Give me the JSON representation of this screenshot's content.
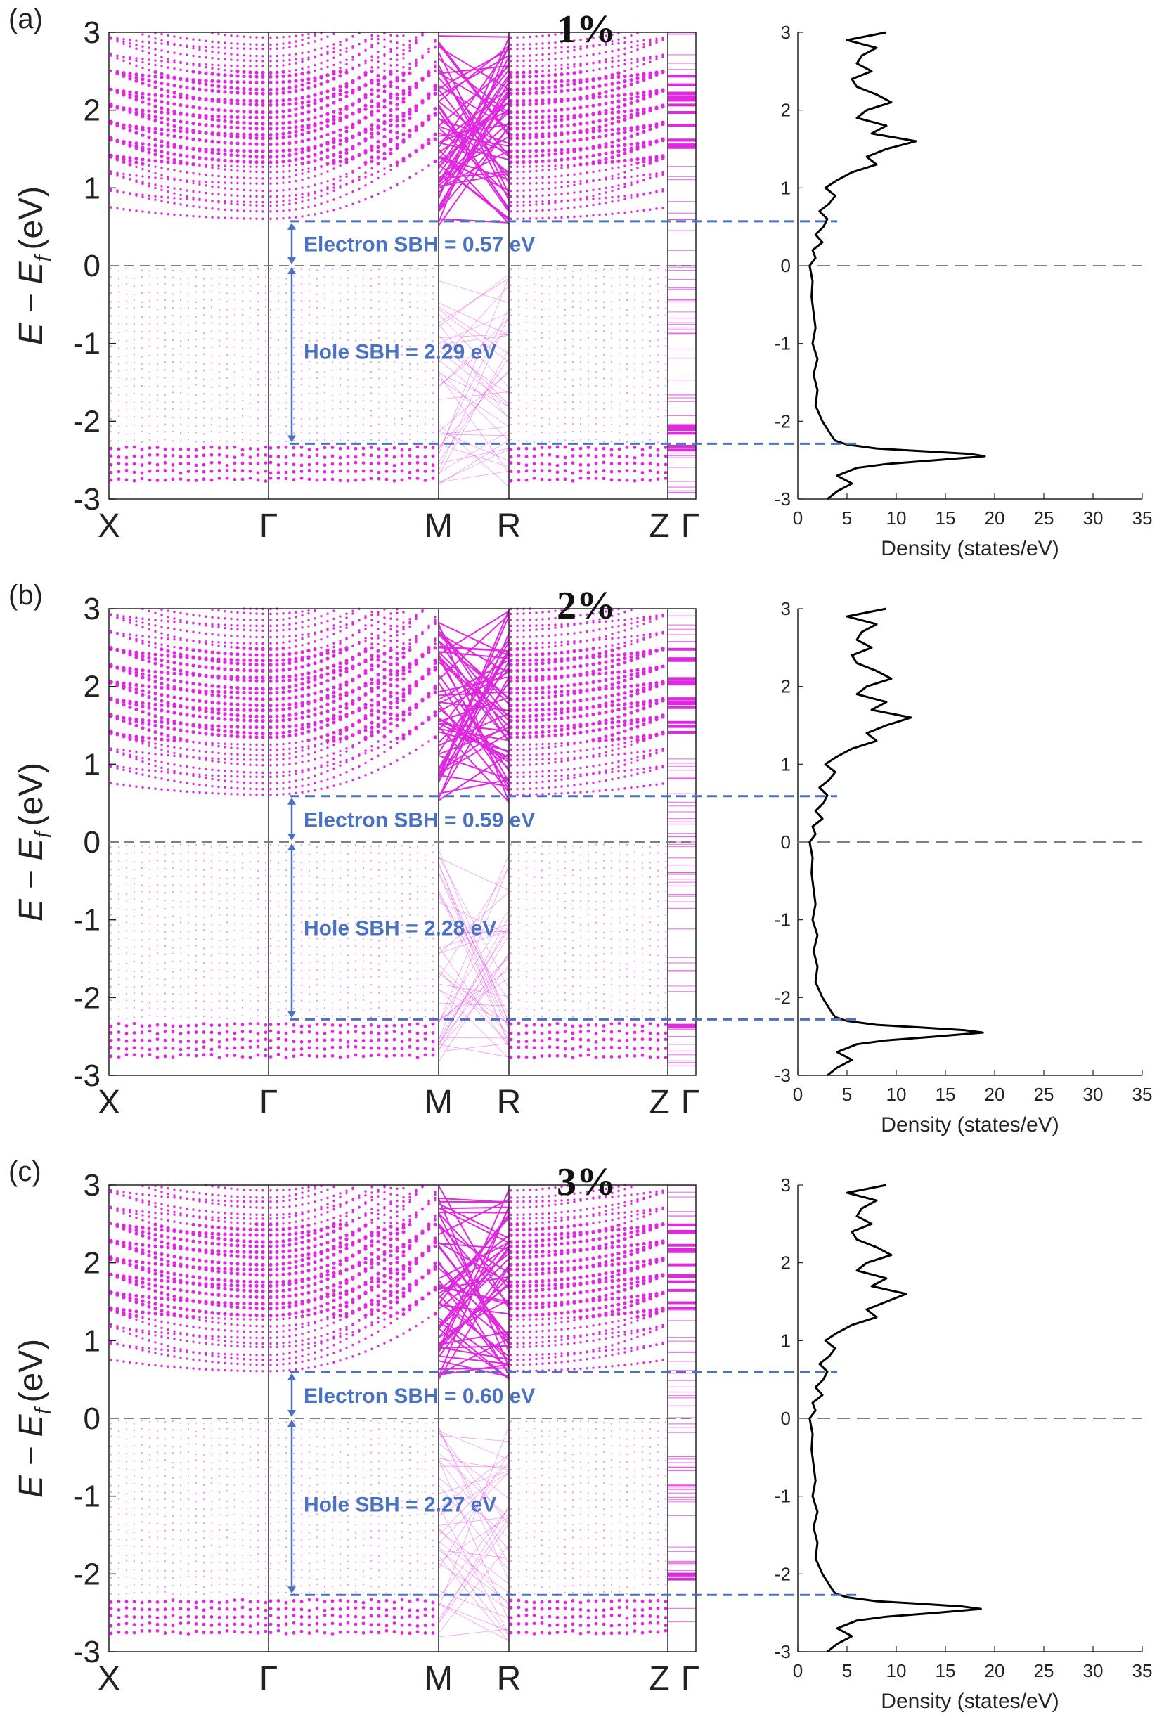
{
  "chart_data": [
    {
      "type": "line",
      "panel_label": "(a)",
      "strain_label": "1%",
      "band_structure": {
        "kpoints": [
          "X",
          "Γ",
          "M",
          "R",
          "Z",
          "Γ"
        ],
        "ylabel_main": "E − E",
        "ylabel_sub": "f",
        "ylabel_unit": "(eV)",
        "ylim": [
          -3,
          3
        ],
        "yticks": [
          "3",
          "2",
          "1",
          "0",
          "-1",
          "-2",
          "-3"
        ],
        "cbm": 0.57,
        "vbm": -2.29,
        "fermi": 0,
        "electron_sbh_label": "Electron SBH = 0.57 eV",
        "hole_sbh_label": "Hole SBH = 2.29 eV"
      },
      "dos": {
        "xlabel": "Density (states/eV)",
        "xlim": [
          0,
          35
        ],
        "xticks": [
          "0",
          "5",
          "10",
          "15",
          "20",
          "25",
          "30",
          "35"
        ],
        "ylim": [
          -3,
          3
        ],
        "yticks": [
          "3",
          "2",
          "1",
          "0",
          "-1",
          "-2",
          "-3"
        ],
        "energy": [
          -3,
          -2.9,
          -2.8,
          -2.7,
          -2.6,
          -2.55,
          -2.5,
          -2.45,
          -2.42,
          -2.38,
          -2.35,
          -2.3,
          -2.25,
          -2.2,
          -2.1,
          -2.0,
          -1.8,
          -1.6,
          -1.4,
          -1.2,
          -1.0,
          -0.8,
          -0.6,
          -0.4,
          -0.2,
          0.0,
          0.1,
          0.2,
          0.3,
          0.4,
          0.5,
          0.6,
          0.7,
          0.8,
          0.9,
          1.0,
          1.1,
          1.2,
          1.3,
          1.4,
          1.5,
          1.6,
          1.7,
          1.8,
          1.9,
          2.0,
          2.1,
          2.2,
          2.3,
          2.4,
          2.5,
          2.6,
          2.7,
          2.8,
          2.9,
          3.0
        ],
        "density": [
          3.0,
          4.0,
          5.5,
          4.0,
          6.0,
          9.0,
          14.0,
          19.0,
          17.5,
          12.0,
          8.0,
          5.0,
          3.8,
          3.5,
          3.0,
          2.5,
          1.8,
          2.0,
          1.6,
          2.0,
          1.5,
          1.8,
          1.6,
          1.4,
          1.5,
          1.2,
          1.8,
          1.5,
          2.5,
          1.8,
          2.6,
          3.0,
          2.2,
          3.2,
          3.8,
          2.8,
          4.0,
          5.5,
          8.0,
          7.0,
          9.0,
          12.0,
          7.5,
          9.0,
          6.0,
          7.0,
          9.5,
          8.0,
          6.0,
          5.5,
          7.5,
          6.0,
          6.5,
          8.0,
          5.0,
          9.0
        ]
      }
    },
    {
      "type": "line",
      "panel_label": "(b)",
      "strain_label": "2%",
      "band_structure": {
        "kpoints": [
          "X",
          "Γ",
          "M",
          "R",
          "Z",
          "Γ"
        ],
        "ylabel_main": "E − E",
        "ylabel_sub": "f",
        "ylabel_unit": "(eV)",
        "ylim": [
          -3,
          3
        ],
        "yticks": [
          "3",
          "2",
          "1",
          "0",
          "-1",
          "-2",
          "-3"
        ],
        "cbm": 0.59,
        "vbm": -2.28,
        "fermi": 0,
        "electron_sbh_label": "Electron SBH = 0.59 eV",
        "hole_sbh_label": "Hole SBH = 2.28 eV"
      },
      "dos": {
        "xlabel": "Density (states/eV)",
        "xlim": [
          0,
          35
        ],
        "xticks": [
          "0",
          "5",
          "10",
          "15",
          "20",
          "25",
          "30",
          "35"
        ],
        "ylim": [
          -3,
          3
        ],
        "yticks": [
          "3",
          "2",
          "1",
          "0",
          "-1",
          "-2",
          "-3"
        ],
        "energy": [
          -3,
          -2.9,
          -2.8,
          -2.7,
          -2.6,
          -2.55,
          -2.5,
          -2.45,
          -2.42,
          -2.38,
          -2.35,
          -2.3,
          -2.25,
          -2.2,
          -2.1,
          -2.0,
          -1.8,
          -1.6,
          -1.4,
          -1.2,
          -1.0,
          -0.8,
          -0.6,
          -0.4,
          -0.2,
          0.0,
          0.1,
          0.2,
          0.3,
          0.4,
          0.5,
          0.6,
          0.7,
          0.8,
          0.9,
          1.0,
          1.1,
          1.2,
          1.3,
          1.4,
          1.5,
          1.6,
          1.7,
          1.8,
          1.9,
          2.0,
          2.1,
          2.2,
          2.3,
          2.4,
          2.5,
          2.6,
          2.7,
          2.8,
          2.9,
          3.0
        ],
        "density": [
          3.0,
          4.0,
          5.5,
          4.0,
          6.0,
          9.0,
          14.0,
          18.8,
          17.0,
          12.0,
          8.0,
          5.0,
          3.8,
          3.5,
          3.0,
          2.5,
          1.8,
          2.0,
          1.6,
          2.0,
          1.5,
          1.8,
          1.6,
          1.4,
          1.5,
          1.2,
          1.8,
          1.5,
          2.5,
          1.8,
          2.6,
          3.0,
          2.2,
          3.2,
          3.8,
          2.8,
          4.0,
          5.5,
          8.0,
          7.0,
          9.0,
          11.5,
          7.5,
          9.0,
          6.0,
          7.0,
          9.5,
          8.0,
          6.0,
          5.5,
          7.5,
          6.0,
          6.5,
          8.0,
          5.0,
          9.0
        ]
      }
    },
    {
      "type": "line",
      "panel_label": "(c)",
      "strain_label": "3%",
      "band_structure": {
        "kpoints": [
          "X",
          "Γ",
          "M",
          "R",
          "Z",
          "Γ"
        ],
        "ylabel_main": "E − E",
        "ylabel_sub": "f",
        "ylabel_unit": "(eV)",
        "ylim": [
          -3,
          3
        ],
        "yticks": [
          "3",
          "2",
          "1",
          "0",
          "-1",
          "-2",
          "-3"
        ],
        "cbm": 0.6,
        "vbm": -2.27,
        "fermi": 0,
        "electron_sbh_label": "Electron SBH = 0.60 eV",
        "hole_sbh_label": "Hole SBH = 2.27 eV"
      },
      "dos": {
        "xlabel": "Density (states/eV)",
        "xlim": [
          0,
          35
        ],
        "xticks": [
          "0",
          "5",
          "10",
          "15",
          "20",
          "25",
          "30",
          "35"
        ],
        "ylim": [
          -3,
          3
        ],
        "yticks": [
          "3",
          "2",
          "1",
          "0",
          "-1",
          "-2",
          "-3"
        ],
        "energy": [
          -3,
          -2.9,
          -2.8,
          -2.7,
          -2.6,
          -2.55,
          -2.5,
          -2.45,
          -2.42,
          -2.38,
          -2.35,
          -2.3,
          -2.25,
          -2.2,
          -2.1,
          -2.0,
          -1.8,
          -1.6,
          -1.4,
          -1.2,
          -1.0,
          -0.8,
          -0.6,
          -0.4,
          -0.2,
          0.0,
          0.1,
          0.2,
          0.3,
          0.4,
          0.5,
          0.6,
          0.7,
          0.8,
          0.9,
          1.0,
          1.1,
          1.2,
          1.3,
          1.4,
          1.5,
          1.6,
          1.7,
          1.8,
          1.9,
          2.0,
          2.1,
          2.2,
          2.3,
          2.4,
          2.5,
          2.6,
          2.7,
          2.8,
          2.9,
          3.0
        ],
        "density": [
          3.0,
          4.0,
          5.5,
          4.0,
          6.0,
          9.0,
          14.0,
          18.6,
          16.8,
          12.0,
          8.0,
          5.0,
          3.8,
          3.5,
          3.0,
          2.5,
          1.8,
          2.0,
          1.6,
          2.0,
          1.5,
          1.8,
          1.6,
          1.4,
          1.5,
          1.2,
          1.8,
          1.5,
          2.5,
          1.8,
          2.6,
          3.0,
          2.2,
          3.2,
          3.8,
          2.8,
          4.0,
          5.5,
          8.0,
          7.0,
          9.0,
          11.0,
          7.5,
          9.0,
          6.0,
          7.0,
          9.5,
          8.0,
          6.0,
          5.5,
          7.5,
          6.0,
          6.5,
          8.0,
          5.0,
          9.0
        ]
      }
    }
  ],
  "colors": {
    "band": "#e028e0",
    "sbh": "#4a72c4",
    "fermi_line": "#808080",
    "dos_line": "#000000",
    "axis": "#222222"
  }
}
